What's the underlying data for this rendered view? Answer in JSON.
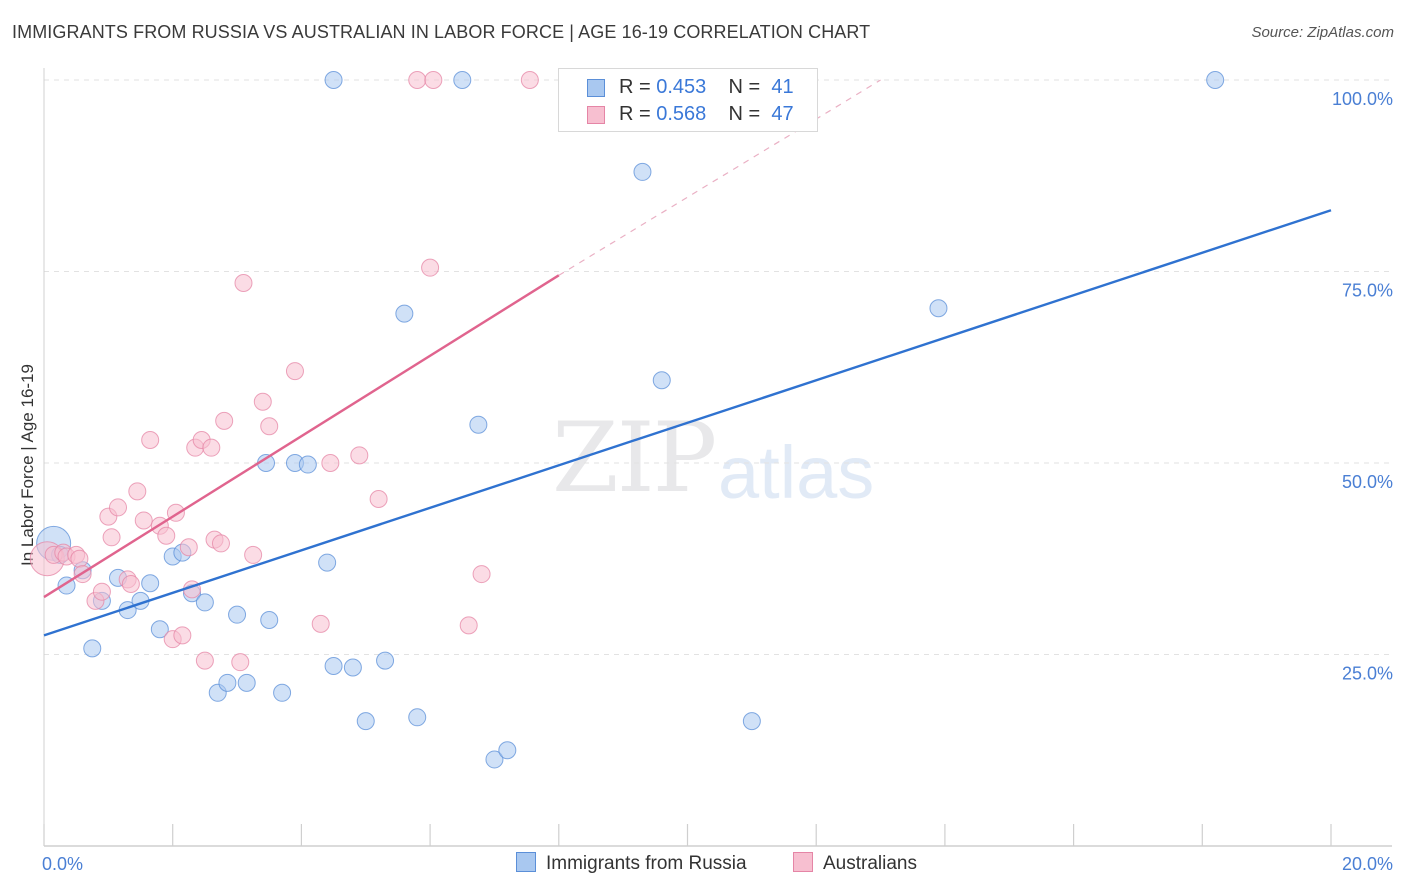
{
  "chart_data": {
    "type": "scatter",
    "title": "IMMIGRANTS FROM RUSSIA VS AUSTRALIAN IN LABOR FORCE | AGE 16-19 CORRELATION CHART",
    "source": "Source: ZipAtlas.com",
    "ylabel": "In Labor Force | Age 16-19",
    "xlabel": "",
    "xlim": [
      0,
      20
    ],
    "ylim": [
      0,
      102
    ],
    "x_tick_labels": [
      "0.0%",
      "20.0%"
    ],
    "y_ticks": [
      25,
      50,
      75,
      100
    ],
    "y_tick_labels": [
      "25.0%",
      "50.0%",
      "75.0%",
      "100.0%"
    ],
    "watermark": [
      "ZIP",
      "atlas"
    ],
    "legend": [
      {
        "name": "Immigrants from Russia",
        "r_label": "R =",
        "r": "0.453",
        "n_label": "N =",
        "n": "41",
        "color": "#a9c8f0",
        "stroke": "#5b8fd8"
      },
      {
        "name": "Australians",
        "r_label": "R =",
        "r": "0.568",
        "n_label": "N =",
        "n": "47",
        "color": "#f7bfd0",
        "stroke": "#e585a6"
      }
    ],
    "series": [
      {
        "name": "Immigrants from Russia",
        "color": "#a9c8f0",
        "stroke": "#5b8fd8",
        "trend": {
          "x0": 0,
          "y0": 27.5,
          "x1": 20,
          "y1": 83.0,
          "color": "#2f72d0"
        },
        "points": [
          [
            0.15,
            39.5,
            2.0
          ],
          [
            0.25,
            38.0,
            1
          ],
          [
            0.35,
            34.0,
            1
          ],
          [
            0.6,
            36.0,
            1
          ],
          [
            0.75,
            25.8,
            1
          ],
          [
            0.9,
            32.0,
            1
          ],
          [
            1.15,
            35.0,
            1
          ],
          [
            1.3,
            30.8,
            1
          ],
          [
            1.5,
            32.0,
            1
          ],
          [
            1.65,
            34.3,
            1
          ],
          [
            1.8,
            28.3,
            1
          ],
          [
            2.0,
            37.8,
            1
          ],
          [
            2.15,
            38.3,
            1
          ],
          [
            2.3,
            33.0,
            1
          ],
          [
            2.5,
            31.8,
            1
          ],
          [
            2.7,
            20.0,
            1
          ],
          [
            2.85,
            21.3,
            1
          ],
          [
            3.0,
            30.2,
            1
          ],
          [
            3.15,
            21.3,
            1
          ],
          [
            3.45,
            50.0,
            1
          ],
          [
            3.5,
            29.5,
            1
          ],
          [
            3.7,
            20.0,
            1
          ],
          [
            3.9,
            50.0,
            1
          ],
          [
            4.1,
            49.8,
            1
          ],
          [
            4.4,
            37.0,
            1
          ],
          [
            4.5,
            100.0,
            1
          ],
          [
            4.5,
            23.5,
            1
          ],
          [
            4.8,
            23.3,
            1
          ],
          [
            5.0,
            16.3,
            1
          ],
          [
            5.3,
            24.2,
            1
          ],
          [
            5.6,
            69.5,
            1
          ],
          [
            5.8,
            16.8,
            1
          ],
          [
            6.5,
            100.0,
            1
          ],
          [
            6.75,
            55.0,
            1
          ],
          [
            7.0,
            11.3,
            1
          ],
          [
            7.2,
            12.5,
            1
          ],
          [
            9.3,
            88.0,
            1
          ],
          [
            9.6,
            60.8,
            1
          ],
          [
            11.0,
            16.3,
            1
          ],
          [
            13.9,
            70.2,
            1
          ],
          [
            18.2,
            100.0,
            1
          ]
        ]
      },
      {
        "name": "Australians",
        "color": "#f7bfd0",
        "stroke": "#e585a6",
        "trend": {
          "x0": 0,
          "y0": 32.5,
          "x1": 8.0,
          "y1": 74.5,
          "color": "#e0648e"
        },
        "trend_ext": {
          "x0": 8.0,
          "y0": 74.5,
          "x1": 13.0,
          "y1": 100.0
        },
        "points": [
          [
            0.05,
            37.5,
            2.0
          ],
          [
            0.15,
            38.0,
            1
          ],
          [
            0.3,
            38.3,
            1
          ],
          [
            0.35,
            37.8,
            1
          ],
          [
            0.5,
            38.0,
            1
          ],
          [
            0.55,
            37.5,
            1
          ],
          [
            0.6,
            35.5,
            1
          ],
          [
            0.8,
            32.0,
            1
          ],
          [
            0.9,
            33.2,
            1
          ],
          [
            1.0,
            43.0,
            1
          ],
          [
            1.05,
            40.3,
            1
          ],
          [
            1.15,
            44.2,
            1
          ],
          [
            1.3,
            34.8,
            1
          ],
          [
            1.35,
            34.2,
            1
          ],
          [
            1.45,
            46.3,
            1
          ],
          [
            1.55,
            42.5,
            1
          ],
          [
            1.65,
            53.0,
            1
          ],
          [
            1.8,
            41.8,
            1
          ],
          [
            1.9,
            40.5,
            1
          ],
          [
            2.0,
            27.0,
            1
          ],
          [
            2.05,
            43.5,
            1
          ],
          [
            2.15,
            27.5,
            1
          ],
          [
            2.25,
            39.0,
            1
          ],
          [
            2.3,
            33.5,
            1
          ],
          [
            2.35,
            52.0,
            1
          ],
          [
            2.45,
            53.0,
            1
          ],
          [
            2.5,
            24.2,
            1
          ],
          [
            2.6,
            52.0,
            1
          ],
          [
            2.65,
            40.0,
            1
          ],
          [
            2.75,
            39.5,
            1
          ],
          [
            2.8,
            55.5,
            1
          ],
          [
            3.05,
            24.0,
            1
          ],
          [
            3.1,
            73.5,
            1
          ],
          [
            3.25,
            38.0,
            1
          ],
          [
            3.4,
            58.0,
            1
          ],
          [
            3.5,
            54.8,
            1
          ],
          [
            3.9,
            62.0,
            1
          ],
          [
            4.3,
            29.0,
            1
          ],
          [
            4.45,
            50.0,
            1
          ],
          [
            4.9,
            51.0,
            1
          ],
          [
            5.2,
            45.3,
            1
          ],
          [
            5.8,
            100.0,
            1
          ],
          [
            6.0,
            75.5,
            1
          ],
          [
            6.05,
            100.0,
            1
          ],
          [
            6.6,
            28.8,
            1
          ],
          [
            6.8,
            35.5,
            1
          ],
          [
            7.55,
            100.0,
            1
          ]
        ]
      }
    ]
  }
}
